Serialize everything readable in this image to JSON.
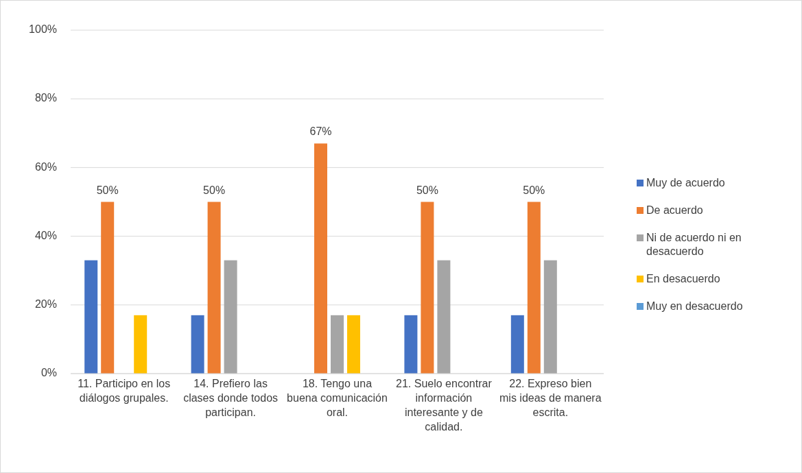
{
  "chart_data": {
    "type": "bar",
    "categories": [
      "11.  Participo en los diálogos grupales.",
      "14.  Prefiero las clases donde todos participan.",
      "18.  Tengo una buena comunicación oral.",
      "21.  Suelo encontrar información interesante y de calidad.",
      "22.  Expreso bien mis ideas de manera escrita."
    ],
    "series": [
      {
        "name": "Muy de acuerdo",
        "color": "#4472c4",
        "values": [
          33,
          17,
          0,
          17,
          17
        ]
      },
      {
        "name": "De acuerdo",
        "color": "#ed7d31",
        "values": [
          50,
          50,
          67,
          50,
          50
        ],
        "value_labels": [
          "50%",
          "50%",
          "67%",
          "50%",
          "50%"
        ]
      },
      {
        "name": "Ni de acuerdo ni en desacuerdo",
        "color": "#a5a5a5",
        "values": [
          0,
          33,
          17,
          33,
          33
        ]
      },
      {
        "name": "En desacuerdo",
        "color": "#ffc000",
        "values": [
          17,
          0,
          17,
          0,
          0
        ]
      },
      {
        "name": "Muy en desacuerdo",
        "color": "#5b9bd5",
        "values": [
          0,
          0,
          0,
          0,
          0
        ]
      }
    ],
    "ylim": [
      0,
      100
    ],
    "yticks": [
      {
        "value": 0,
        "label": "0%"
      },
      {
        "value": 20,
        "label": "20%"
      },
      {
        "value": 40,
        "label": "40%"
      },
      {
        "value": 60,
        "label": "60%"
      },
      {
        "value": 80,
        "label": "80%"
      },
      {
        "value": 100,
        "label": "100%"
      }
    ],
    "grid": "y",
    "legend": "right"
  }
}
